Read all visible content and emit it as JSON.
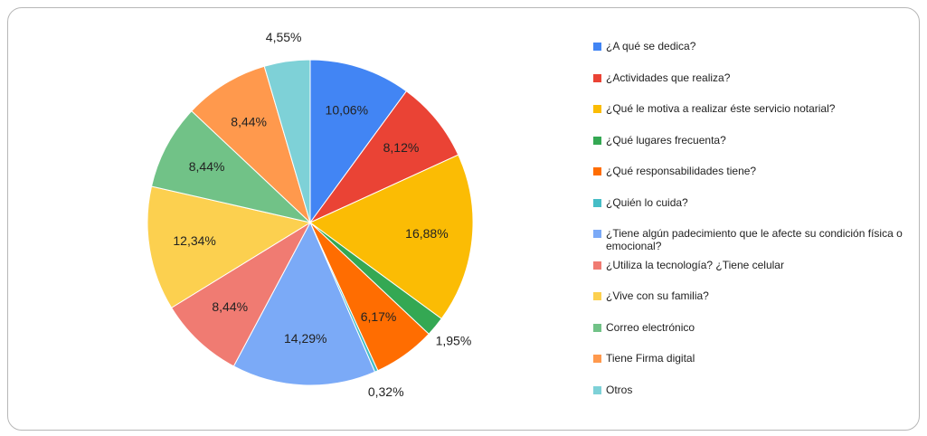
{
  "chart_data": {
    "type": "pie",
    "categories": [
      "¿A qué se dedica?",
      "¿Actividades que realiza?",
      "¿Qué le motiva a realizar éste servicio notarial?",
      "¿Qué lugares frecuenta?",
      "¿Qué responsabilidades tiene?",
      "¿Quién lo cuida?",
      "¿Tiene algún padecimiento que le afecte su condición física o emocional?",
      "¿Utiliza la tecnología? ¿Tiene celular",
      "¿Vive con su familia?",
      "Correo electrónico",
      "Tiene Firma digital",
      "Otros"
    ],
    "values": [
      10.06,
      8.12,
      16.88,
      1.95,
      6.17,
      0.32,
      14.29,
      8.44,
      12.34,
      8.44,
      8.44,
      4.55
    ],
    "value_labels": [
      "10,06%",
      "8,12%",
      "16,88%",
      "1,95%",
      "6,17%",
      "0,32%",
      "14,29%",
      "8,44%",
      "12,34%",
      "8,44%",
      "8,44%",
      "4,55%"
    ],
    "colors": [
      "#4285f4",
      "#ea4335",
      "#fbbc04",
      "#34a853",
      "#ff6d01",
      "#46bdc6",
      "#7baaf7",
      "#f07b72",
      "#fcd04f",
      "#71c287",
      "#ff994d",
      "#7ed1d7"
    ],
    "legend": "right"
  }
}
